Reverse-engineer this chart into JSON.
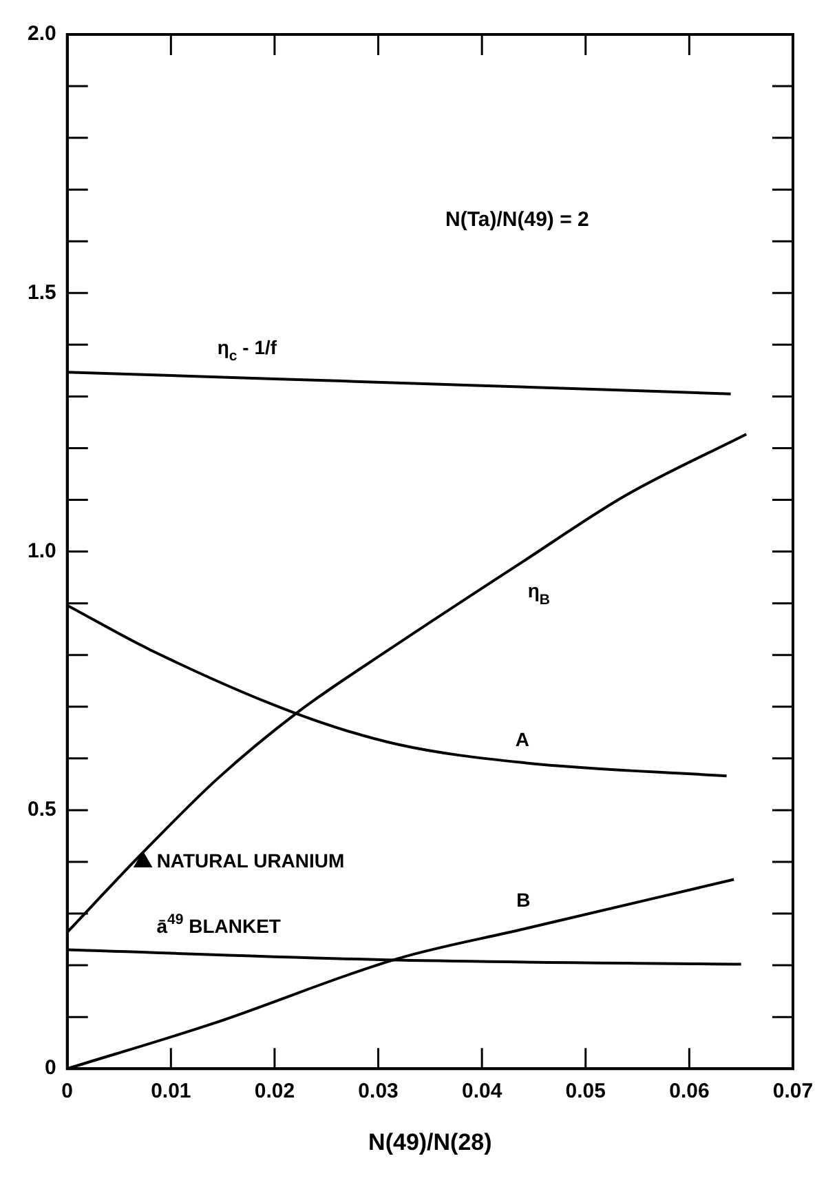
{
  "chart_data": {
    "type": "line",
    "xlabel": "N(49)/N(28)",
    "annotations": [
      "N(Ta)/N(49) = 2"
    ],
    "xlim": [
      0,
      0.07
    ],
    "ylim": [
      0,
      2.0
    ],
    "xticks": [
      0,
      0.01,
      0.02,
      0.03,
      0.04,
      0.05,
      0.06,
      0.07
    ],
    "yticks": [
      {
        "value": 0,
        "label": "0"
      },
      {
        "value": 0.1,
        "label": null
      },
      {
        "value": 0.2,
        "label": null
      },
      {
        "value": 0.3,
        "label": null
      },
      {
        "value": 0.4,
        "label": null
      },
      {
        "value": 0.5,
        "label": "0.5"
      },
      {
        "value": 0.6,
        "label": null
      },
      {
        "value": 0.7,
        "label": null
      },
      {
        "value": 0.8,
        "label": null
      },
      {
        "value": 0.9,
        "label": null
      },
      {
        "value": 1.0,
        "label": "1.0"
      },
      {
        "value": 1.1,
        "label": null
      },
      {
        "value": 1.2,
        "label": null
      },
      {
        "value": 1.3,
        "label": null
      },
      {
        "value": 1.4,
        "label": null
      },
      {
        "value": 1.5,
        "label": "1.5"
      },
      {
        "value": 1.6,
        "label": null
      },
      {
        "value": 1.7,
        "label": null
      },
      {
        "value": 1.8,
        "label": null
      },
      {
        "value": 1.9,
        "label": null
      },
      {
        "value": 2.0,
        "label": "2.0"
      }
    ],
    "series": [
      {
        "name": "η$_{c}$ - 1/f",
        "color": "#000000",
        "x": [
          0,
          0.02,
          0.04,
          0.064
        ],
        "values": [
          1.347,
          1.334,
          1.321,
          1.305
        ]
      },
      {
        "name": "η$_{B}$",
        "color": "#000000",
        "x": [
          0,
          0.007,
          0.0145,
          0.0222,
          0.031,
          0.0439,
          0.0539,
          0.0655
        ],
        "values": [
          0.264,
          0.412,
          0.561,
          0.689,
          0.81,
          0.98,
          1.109,
          1.227
        ]
      },
      {
        "name": "A",
        "color": "#000000",
        "x": [
          0,
          0.008,
          0.0222,
          0.0319,
          0.0439,
          0.0636
        ],
        "values": [
          0.896,
          0.81,
          0.686,
          0.627,
          0.592,
          0.566
        ]
      },
      {
        "name": "B",
        "color": "#000000",
        "x": [
          0,
          0.014,
          0.0319,
          0.044,
          0.0643
        ],
        "values": [
          0,
          0.087,
          0.213,
          0.27,
          0.366
        ]
      },
      {
        "name": "ā$^{49}$ BLANKET",
        "color": "#000000",
        "x": [
          0,
          0.0319,
          0.065
        ],
        "values": [
          0.23,
          0.21,
          0.202
        ]
      },
      {
        "name": "NATURAL URANIUM",
        "type": "scatter",
        "marker": "triangle",
        "color": "#000000",
        "x": [
          0.0073
        ],
        "values": [
          0.4
        ]
      }
    ]
  }
}
